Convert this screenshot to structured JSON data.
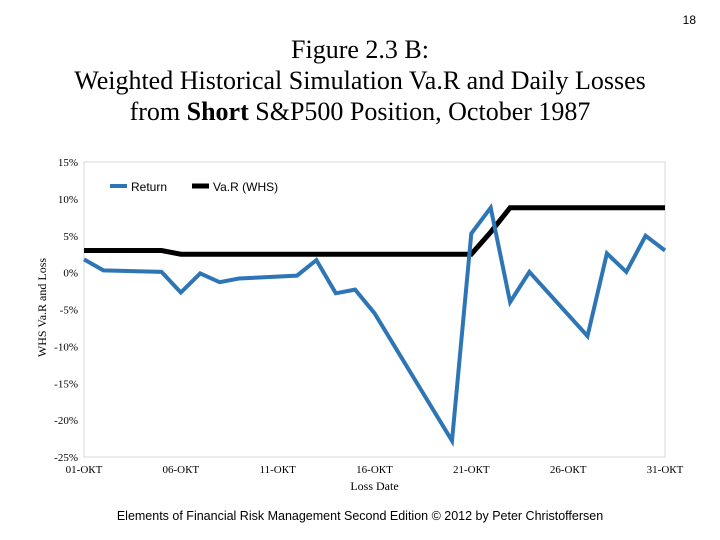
{
  "page_number": "18",
  "title": {
    "line1": "Figure 2.3 B:",
    "line2": "Weighted Historical Simulation Va.R and Daily Losses",
    "line3_before": "from ",
    "line3_bold": "Short",
    "line3_after": " S&P500 Position, October 1987"
  },
  "footer": "Elements of Financial Risk Management Second Edition © 2012  by Peter Christoffersen",
  "chart_data": {
    "type": "line",
    "xlabel": "Loss Date",
    "ylabel": "WHS Va.R and Loss",
    "ylim": [
      -25,
      15
    ],
    "xlim": [
      1,
      31
    ],
    "y_ticks": [
      15,
      10,
      5,
      0,
      -5,
      -10,
      -15,
      -20,
      -25
    ],
    "y_tick_labels": [
      "15%",
      "10%",
      "5%",
      "0%",
      "-5%",
      "-10%",
      "-15%",
      "-20%",
      "-25%"
    ],
    "x_ticks": [
      1,
      6,
      11,
      16,
      21,
      26,
      31
    ],
    "x_tick_labels": [
      "01-ОКТ",
      "06-ОКТ",
      "11-ОКТ",
      "16-ОКТ",
      "21-ОКТ",
      "26-ОКТ",
      "31-ОКТ"
    ],
    "grid": false,
    "legend_position": "top-left",
    "series": [
      {
        "name": "Return",
        "color": "#2e75b6",
        "x": [
          1,
          2,
          5,
          6,
          7,
          8,
          9,
          12,
          13,
          14,
          15,
          16,
          20,
          21,
          22,
          23,
          24,
          27,
          28,
          29,
          30,
          31
        ],
        "y": [
          1.8,
          0.3,
          0.1,
          -2.7,
          -0.1,
          -1.3,
          -0.8,
          -0.4,
          1.7,
          -2.8,
          -2.3,
          -5.5,
          -22.8,
          5.3,
          8.8,
          -4.0,
          0.1,
          -8.6,
          2.6,
          0.1,
          5.0,
          3.0
        ]
      },
      {
        "name": "Va.R (WHS)",
        "color": "#000000",
        "x": [
          1,
          5,
          6,
          20,
          21,
          22,
          23,
          31
        ],
        "y": [
          3.0,
          3.0,
          2.5,
          2.5,
          2.5,
          5.5,
          8.8,
          8.8
        ]
      }
    ]
  }
}
